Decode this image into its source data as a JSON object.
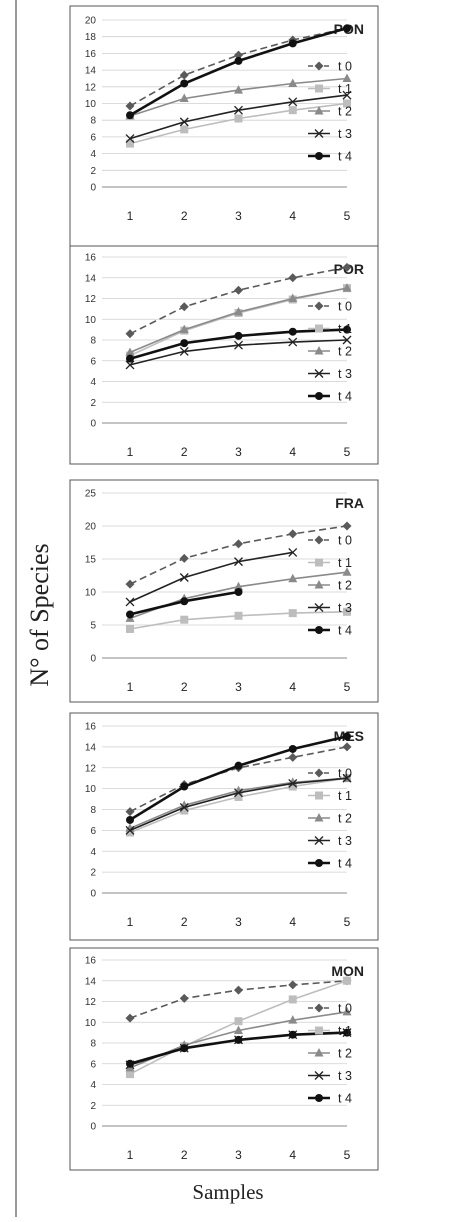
{
  "figure": {
    "ylabel": "N° of Species",
    "xlabel": "Samples"
  },
  "chart_data": [
    {
      "type": "line",
      "title": "PON",
      "x": [
        1,
        2,
        3,
        4,
        5
      ],
      "ylim": [
        0,
        20
      ],
      "ytick_step": 2,
      "series": [
        {
          "name": "t 0",
          "values": [
            9.7,
            13.4,
            15.8,
            17.6,
            19.0
          ],
          "color": "#5a5a5a",
          "dash": true,
          "marker": "diamond"
        },
        {
          "name": "t 1",
          "values": [
            5.2,
            6.9,
            8.2,
            9.2,
            10.0
          ],
          "color": "#bdbdbd",
          "dash": false,
          "marker": "square"
        },
        {
          "name": "t 2",
          "values": [
            8.5,
            10.6,
            11.6,
            12.4,
            13.0
          ],
          "color": "#8a8a8a",
          "dash": false,
          "marker": "triangle"
        },
        {
          "name": "t 3",
          "values": [
            5.8,
            7.8,
            9.2,
            10.2,
            11.0
          ],
          "color": "#222222",
          "dash": false,
          "marker": "x"
        },
        {
          "name": "t 4",
          "values": [
            8.6,
            12.4,
            15.1,
            17.2,
            19.0
          ],
          "color": "#111111",
          "dash": false,
          "marker": "circle",
          "bold": true
        }
      ]
    },
    {
      "type": "line",
      "title": "POR",
      "x": [
        1,
        2,
        3,
        4,
        5
      ],
      "ylim": [
        0,
        16
      ],
      "ytick_step": 2,
      "series": [
        {
          "name": "t 0",
          "values": [
            8.6,
            11.2,
            12.8,
            14.0,
            15.0
          ],
          "color": "#5a5a5a",
          "dash": true,
          "marker": "diamond"
        },
        {
          "name": "t 1",
          "values": [
            6.5,
            8.9,
            10.6,
            11.9,
            13.0
          ],
          "color": "#bdbdbd",
          "dash": false,
          "marker": "square"
        },
        {
          "name": "t 2",
          "values": [
            6.8,
            9.0,
            10.7,
            12.0,
            13.0
          ],
          "color": "#8a8a8a",
          "dash": false,
          "marker": "triangle"
        },
        {
          "name": "t 3",
          "values": [
            5.6,
            6.9,
            7.5,
            7.8,
            8.0
          ],
          "color": "#222222",
          "dash": false,
          "marker": "x"
        },
        {
          "name": "t 4",
          "values": [
            6.2,
            7.7,
            8.4,
            8.8,
            9.0
          ],
          "color": "#111111",
          "dash": false,
          "marker": "circle",
          "bold": true
        }
      ]
    },
    {
      "type": "line",
      "title": "FRA",
      "x": [
        1,
        2,
        3,
        4,
        5
      ],
      "ylim": [
        0,
        25
      ],
      "ytick_step": 5,
      "series": [
        {
          "name": "t 0",
          "values": [
            11.2,
            15.1,
            17.3,
            18.8,
            20.0
          ],
          "color": "#5a5a5a",
          "dash": true,
          "marker": "diamond"
        },
        {
          "name": "t 1",
          "values": [
            4.4,
            5.8,
            6.4,
            6.8,
            7.0
          ],
          "color": "#bdbdbd",
          "dash": false,
          "marker": "square"
        },
        {
          "name": "t 2",
          "values": [
            6.0,
            9.0,
            10.8,
            12.0,
            13.0
          ],
          "color": "#8a8a8a",
          "dash": false,
          "marker": "triangle"
        },
        {
          "name": "t 3",
          "values": [
            8.5,
            12.2,
            14.6,
            16.0,
            null
          ],
          "color": "#222222",
          "dash": false,
          "marker": "x"
        },
        {
          "name": "t 4",
          "values": [
            6.6,
            8.6,
            10.0,
            null,
            null
          ],
          "color": "#111111",
          "dash": false,
          "marker": "circle",
          "bold": true
        }
      ]
    },
    {
      "type": "line",
      "title": "MES",
      "x": [
        1,
        2,
        3,
        4,
        5
      ],
      "ylim": [
        0,
        16
      ],
      "ytick_step": 2,
      "series": [
        {
          "name": "t 0",
          "values": [
            7.8,
            10.4,
            12.0,
            13.0,
            14.0
          ],
          "color": "#5a5a5a",
          "dash": true,
          "marker": "diamond"
        },
        {
          "name": "t 1",
          "values": [
            5.8,
            7.9,
            9.2,
            10.2,
            11.0
          ],
          "color": "#bdbdbd",
          "dash": false,
          "marker": "square"
        },
        {
          "name": "t 2",
          "values": [
            6.2,
            8.4,
            9.8,
            10.6,
            11.0
          ],
          "color": "#8a8a8a",
          "dash": false,
          "marker": "triangle"
        },
        {
          "name": "t 3",
          "values": [
            6.0,
            8.2,
            9.6,
            10.5,
            11.0
          ],
          "color": "#222222",
          "dash": false,
          "marker": "x"
        },
        {
          "name": "t 4",
          "values": [
            7.0,
            10.2,
            12.2,
            13.8,
            15.0
          ],
          "color": "#111111",
          "dash": false,
          "marker": "circle",
          "bold": true
        }
      ]
    },
    {
      "type": "line",
      "title": "MON",
      "x": [
        1,
        2,
        3,
        4,
        5
      ],
      "ylim": [
        0,
        16
      ],
      "ytick_step": 2,
      "series": [
        {
          "name": "t 0",
          "values": [
            10.4,
            12.3,
            13.1,
            13.6,
            14.0
          ],
          "color": "#5a5a5a",
          "dash": true,
          "marker": "diamond"
        },
        {
          "name": "t 1",
          "values": [
            5.0,
            7.7,
            10.1,
            12.2,
            14.0
          ],
          "color": "#bdbdbd",
          "dash": false,
          "marker": "square"
        },
        {
          "name": "t 2",
          "values": [
            5.6,
            7.8,
            9.2,
            10.2,
            11.0
          ],
          "color": "#8a8a8a",
          "dash": false,
          "marker": "triangle"
        },
        {
          "name": "t 3",
          "values": [
            5.9,
            7.5,
            8.3,
            8.8,
            9.0
          ],
          "color": "#222222",
          "dash": false,
          "marker": "x"
        },
        {
          "name": "t 4",
          "values": [
            6.0,
            7.5,
            8.3,
            8.8,
            9.0
          ],
          "color": "#111111",
          "dash": false,
          "marker": "circle",
          "bold": true
        }
      ]
    }
  ]
}
